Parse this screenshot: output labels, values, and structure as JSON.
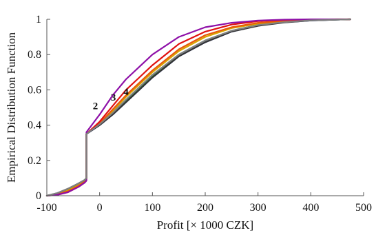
{
  "chart_data": {
    "type": "line",
    "title": "",
    "xlabel": "Profit [× 1000 CZK]",
    "ylabel": "Empirical Distribution Function",
    "xlim": [
      -100,
      500
    ],
    "ylim": [
      0,
      1
    ],
    "x_ticks": [
      -100,
      0,
      100,
      200,
      300,
      400,
      500
    ],
    "y_ticks": [
      0,
      0.2,
      0.4,
      0.6,
      0.8,
      1
    ],
    "x_tick_labels": [
      "-100",
      "0",
      "100",
      "200",
      "300",
      "400",
      "500"
    ],
    "y_tick_labels": [
      "0",
      "0.2",
      "0.4",
      "0.6",
      "0.8",
      "1"
    ],
    "grid": false,
    "legend": "none",
    "annotations": [
      {
        "text": "2",
        "x": -8,
        "y": 0.49
      },
      {
        "text": "3",
        "x": 26,
        "y": 0.54
      },
      {
        "text": "4",
        "x": 50,
        "y": 0.57
      }
    ],
    "series": [
      {
        "color": "#1f3fd1",
        "x": [
          -100,
          -80,
          -60,
          -40,
          -28,
          -25,
          -25,
          0,
          25,
          50,
          75,
          100,
          150,
          200,
          250,
          300,
          350,
          400,
          450,
          475
        ],
        "y": [
          0,
          0.01,
          0.03,
          0.06,
          0.09,
          0.1,
          0.35,
          0.4,
          0.46,
          0.53,
          0.6,
          0.67,
          0.79,
          0.87,
          0.93,
          0.965,
          0.983,
          0.993,
          0.998,
          1
        ]
      },
      {
        "color": "#2f7d3a",
        "x": [
          -100,
          -80,
          -60,
          -40,
          -28,
          -25,
          -25,
          0,
          25,
          50,
          75,
          100,
          150,
          200,
          250,
          300,
          350,
          400,
          450,
          475
        ],
        "y": [
          0,
          0.012,
          0.035,
          0.065,
          0.09,
          0.1,
          0.35,
          0.405,
          0.465,
          0.54,
          0.61,
          0.68,
          0.8,
          0.88,
          0.935,
          0.968,
          0.985,
          0.994,
          0.998,
          1
        ]
      },
      {
        "color": "#d9a400",
        "x": [
          -100,
          -80,
          -60,
          -40,
          -28,
          -25,
          -25,
          0,
          25,
          50,
          75,
          100,
          150,
          200,
          250,
          300,
          350,
          400,
          450,
          475
        ],
        "y": [
          0,
          0.01,
          0.03,
          0.06,
          0.085,
          0.095,
          0.35,
          0.41,
          0.48,
          0.56,
          0.63,
          0.7,
          0.82,
          0.9,
          0.95,
          0.975,
          0.99,
          0.996,
          0.999,
          1
        ]
      },
      {
        "color": "#e8590c",
        "x": [
          -100,
          -80,
          -60,
          -40,
          -28,
          -25,
          -25,
          0,
          25,
          50,
          75,
          100,
          150,
          200,
          250,
          300,
          350,
          400,
          450,
          475
        ],
        "y": [
          0,
          0.008,
          0.025,
          0.055,
          0.08,
          0.09,
          0.35,
          0.41,
          0.49,
          0.57,
          0.64,
          0.71,
          0.83,
          0.91,
          0.955,
          0.98,
          0.992,
          0.997,
          0.999,
          1
        ]
      },
      {
        "color": "#e01010",
        "x": [
          -100,
          -80,
          -60,
          -40,
          -28,
          -25,
          -25,
          0,
          25,
          50,
          75,
          100,
          150,
          200,
          250,
          300,
          350,
          400,
          450,
          475
        ],
        "y": [
          0,
          0.005,
          0.02,
          0.05,
          0.075,
          0.085,
          0.35,
          0.42,
          0.51,
          0.6,
          0.67,
          0.74,
          0.86,
          0.93,
          0.97,
          0.99,
          0.997,
          0.999,
          1,
          1
        ]
      },
      {
        "color": "#8e10a8",
        "x": [
          -100,
          -80,
          -60,
          -40,
          -28,
          -25,
          -25,
          0,
          25,
          50,
          75,
          100,
          150,
          200,
          250,
          300,
          350,
          400,
          450,
          475
        ],
        "y": [
          0,
          0.005,
          0.02,
          0.05,
          0.075,
          0.085,
          0.36,
          0.46,
          0.57,
          0.66,
          0.73,
          0.8,
          0.9,
          0.955,
          0.98,
          0.993,
          0.998,
          1,
          1,
          1
        ]
      },
      {
        "color": "#333333",
        "x": [
          -100,
          -80,
          -60,
          -40,
          -28,
          -25,
          -25,
          0,
          25,
          50,
          75,
          100,
          150,
          200,
          250,
          300,
          350,
          400,
          450,
          475
        ],
        "y": [
          0,
          0.015,
          0.04,
          0.07,
          0.09,
          0.1,
          0.35,
          0.4,
          0.46,
          0.53,
          0.6,
          0.67,
          0.79,
          0.87,
          0.93,
          0.963,
          0.982,
          0.993,
          0.998,
          1
        ]
      },
      {
        "color": "#808080",
        "x": [
          -100,
          -80,
          -60,
          -40,
          -28,
          -25,
          -25,
          0,
          25,
          50,
          75,
          100,
          150,
          200,
          250,
          300,
          350,
          400,
          450,
          475
        ],
        "y": [
          0,
          0.015,
          0.04,
          0.07,
          0.09,
          0.1,
          0.35,
          0.405,
          0.47,
          0.545,
          0.615,
          0.685,
          0.8,
          0.88,
          0.935,
          0.967,
          0.984,
          0.994,
          0.998,
          1
        ]
      }
    ]
  }
}
